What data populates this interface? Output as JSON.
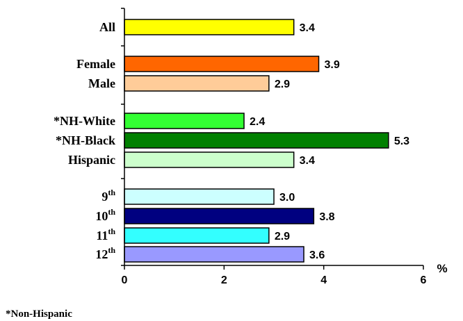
{
  "chart_data": {
    "type": "bar",
    "orientation": "horizontal",
    "unit": "%",
    "xlim": [
      0,
      6
    ],
    "xticks": [
      "0",
      "2",
      "4",
      "6"
    ],
    "grid": false,
    "bars": [
      {
        "label": "All",
        "sup": "",
        "value": 3.4,
        "value_label": "3.4",
        "color": "#FFFF00"
      },
      {
        "label": "Female",
        "sup": "",
        "value": 3.9,
        "value_label": "3.9",
        "color": "#FF6600"
      },
      {
        "label": "Male",
        "sup": "",
        "value": 2.9,
        "value_label": "2.9",
        "color": "#FFCC99"
      },
      {
        "label": "*NH-White",
        "sup": "",
        "value": 2.4,
        "value_label": "2.4",
        "color": "#33FF33"
      },
      {
        "label": "*NH-Black",
        "sup": "",
        "value": 5.3,
        "value_label": "5.3",
        "color": "#008000"
      },
      {
        "label": "Hispanic",
        "sup": "",
        "value": 3.4,
        "value_label": "3.4",
        "color": "#CCFFCC"
      },
      {
        "label": "9",
        "sup": "th",
        "value": 3.0,
        "value_label": "3.0",
        "color": "#CCFFFF"
      },
      {
        "label": "10",
        "sup": "th",
        "value": 3.8,
        "value_label": "3.8",
        "color": "#000080"
      },
      {
        "label": "11",
        "sup": "th",
        "value": 2.9,
        "value_label": "2.9",
        "color": "#33FFFF"
      },
      {
        "label": "12",
        "sup": "th",
        "value": 3.6,
        "value_label": "3.6",
        "color": "#9999FF"
      }
    ],
    "footnote": "*Non-Hispanic"
  }
}
